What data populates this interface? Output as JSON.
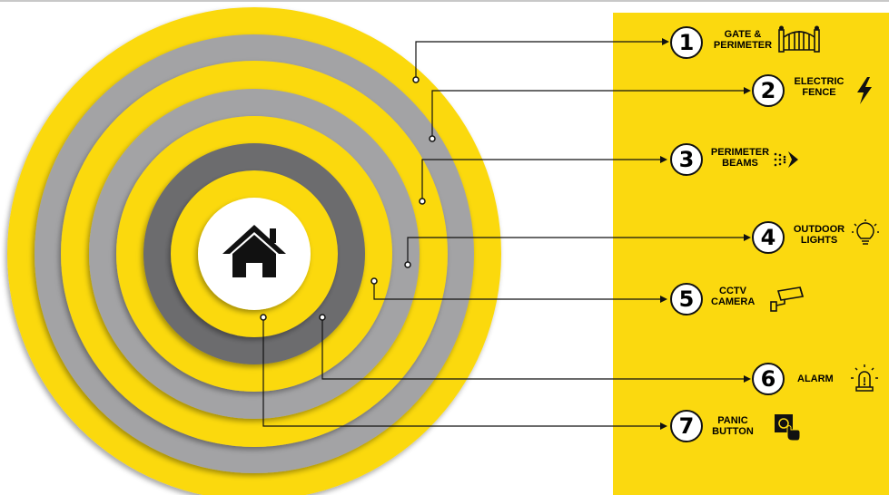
{
  "colors": {
    "yellow": "#fbd90f",
    "gray_light": "#a3a3a5",
    "gray_dark": "#6c6c6e",
    "line": "#111111"
  },
  "center": {
    "icon": "home-icon"
  },
  "items": [
    {
      "number": "1",
      "line1": "GATE &",
      "line2": "PERIMETER",
      "icon": "gate-icon"
    },
    {
      "number": "2",
      "line1": "ELECTRIC",
      "line2": "FENCE",
      "icon": "lightning-bolt-icon"
    },
    {
      "number": "3",
      "line1": "PERIMETER",
      "line2": "BEAMS",
      "icon": "beam-sensor-icon"
    },
    {
      "number": "4",
      "line1": "OUTDOOR",
      "line2": "LIGHTS",
      "icon": "light-bulb-icon"
    },
    {
      "number": "5",
      "line1": "CCTV",
      "line2": "CAMERA",
      "icon": "cctv-camera-icon"
    },
    {
      "number": "6",
      "line1": "ALARM",
      "line2": "",
      "icon": "alarm-siren-icon"
    },
    {
      "number": "7",
      "line1": "PANIC",
      "line2": "BUTTON",
      "icon": "panic-button-icon"
    }
  ]
}
